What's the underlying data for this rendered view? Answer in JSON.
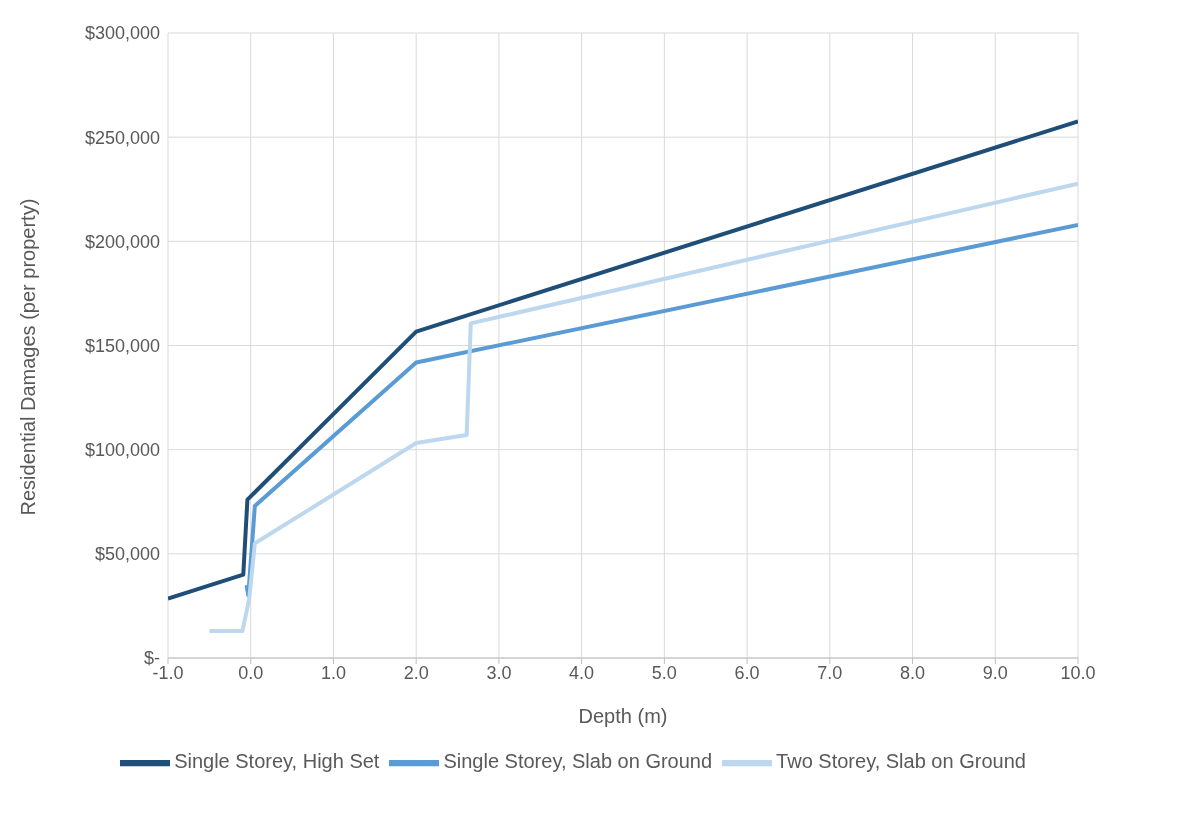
{
  "chart_data": {
    "type": "line",
    "xlabel": "Depth (m)",
    "ylabel": "Residential Damages (per property)",
    "series": [
      {
        "name": "Single Storey, High Set",
        "color": "#1f4e79",
        "x": [
          -1,
          -0.09,
          -0.04,
          2,
          10
        ],
        "values": [
          28500,
          40000,
          76000,
          156700,
          257600
        ]
      },
      {
        "name": "Single Storey, Slab on Ground",
        "color": "#5b9bd5",
        "x": [
          -0.05,
          -0.03,
          0.05,
          2,
          10
        ],
        "values": [
          35000,
          30000,
          73000,
          141800,
          207900
        ]
      },
      {
        "name": "Two Storey, Slab on Ground",
        "color": "#bdd7ee",
        "x": [
          -0.5,
          -0.1,
          -0.02,
          0.05,
          2,
          2.61,
          2.66,
          10
        ],
        "values": [
          13000,
          13000,
          28000,
          55000,
          103200,
          107000,
          160600,
          227700
        ]
      }
    ],
    "xlim": [
      -1,
      10
    ],
    "xticks": [
      {
        "value": -1,
        "label": "-1.0"
      },
      {
        "value": 0,
        "label": "0.0"
      },
      {
        "value": 1,
        "label": "1.0"
      },
      {
        "value": 2,
        "label": "2.0"
      },
      {
        "value": 3,
        "label": "3.0"
      },
      {
        "value": 4,
        "label": "4.0"
      },
      {
        "value": 5,
        "label": "5.0"
      },
      {
        "value": 6,
        "label": "6.0"
      },
      {
        "value": 7,
        "label": "7.0"
      },
      {
        "value": 8,
        "label": "8.0"
      },
      {
        "value": 9,
        "label": "9.0"
      },
      {
        "value": 10,
        "label": "10.0"
      }
    ],
    "ylim": [
      0,
      300000
    ],
    "yticks": [
      {
        "value": 0,
        "label": "$-"
      },
      {
        "value": 50000,
        "label": "$50,000"
      },
      {
        "value": 100000,
        "label": "$100,000"
      },
      {
        "value": 150000,
        "label": "$150,000"
      },
      {
        "value": 200000,
        "label": "$200,000"
      },
      {
        "value": 250000,
        "label": "$250,000"
      },
      {
        "value": 300000,
        "label": "$300,000"
      }
    ],
    "grid": true,
    "legend": "bottom",
    "marker": "none",
    "line_style": "solid"
  }
}
